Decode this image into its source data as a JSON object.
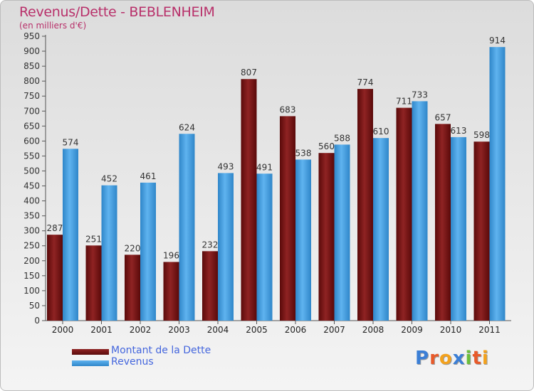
{
  "chart_data": {
    "type": "bar",
    "title": "Revenus/Dette - BEBLENHEIM",
    "subtitle": "(en milliers d'€)",
    "categories": [
      "2000",
      "2001",
      "2002",
      "2003",
      "2004",
      "2005",
      "2006",
      "2007",
      "2008",
      "2009",
      "2010",
      "2011"
    ],
    "series": [
      {
        "name": "Montant de la Dette",
        "color": "#8b1d1d",
        "values": [
          287,
          251,
          220,
          196,
          232,
          807,
          683,
          560,
          774,
          711,
          657,
          598
        ]
      },
      {
        "name": "Revenus",
        "color": "#4ea6e6",
        "values": [
          574,
          452,
          461,
          624,
          493,
          491,
          538,
          588,
          610,
          733,
          613,
          914
        ]
      }
    ],
    "ylim": [
      0,
      950
    ],
    "ytick_step": 50,
    "xlabel": "",
    "ylabel": "",
    "grid": false,
    "legend_position": "bottom-left"
  },
  "brand": {
    "logo_letters": [
      "P",
      "r",
      "o",
      "x",
      "i",
      "t",
      "i"
    ],
    "logo_colors": [
      "#3b7fd6",
      "#e85a2a",
      "#f3a21e",
      "#3b7fd6",
      "#6bbf3a",
      "#e85a2a",
      "#f3a21e"
    ]
  }
}
